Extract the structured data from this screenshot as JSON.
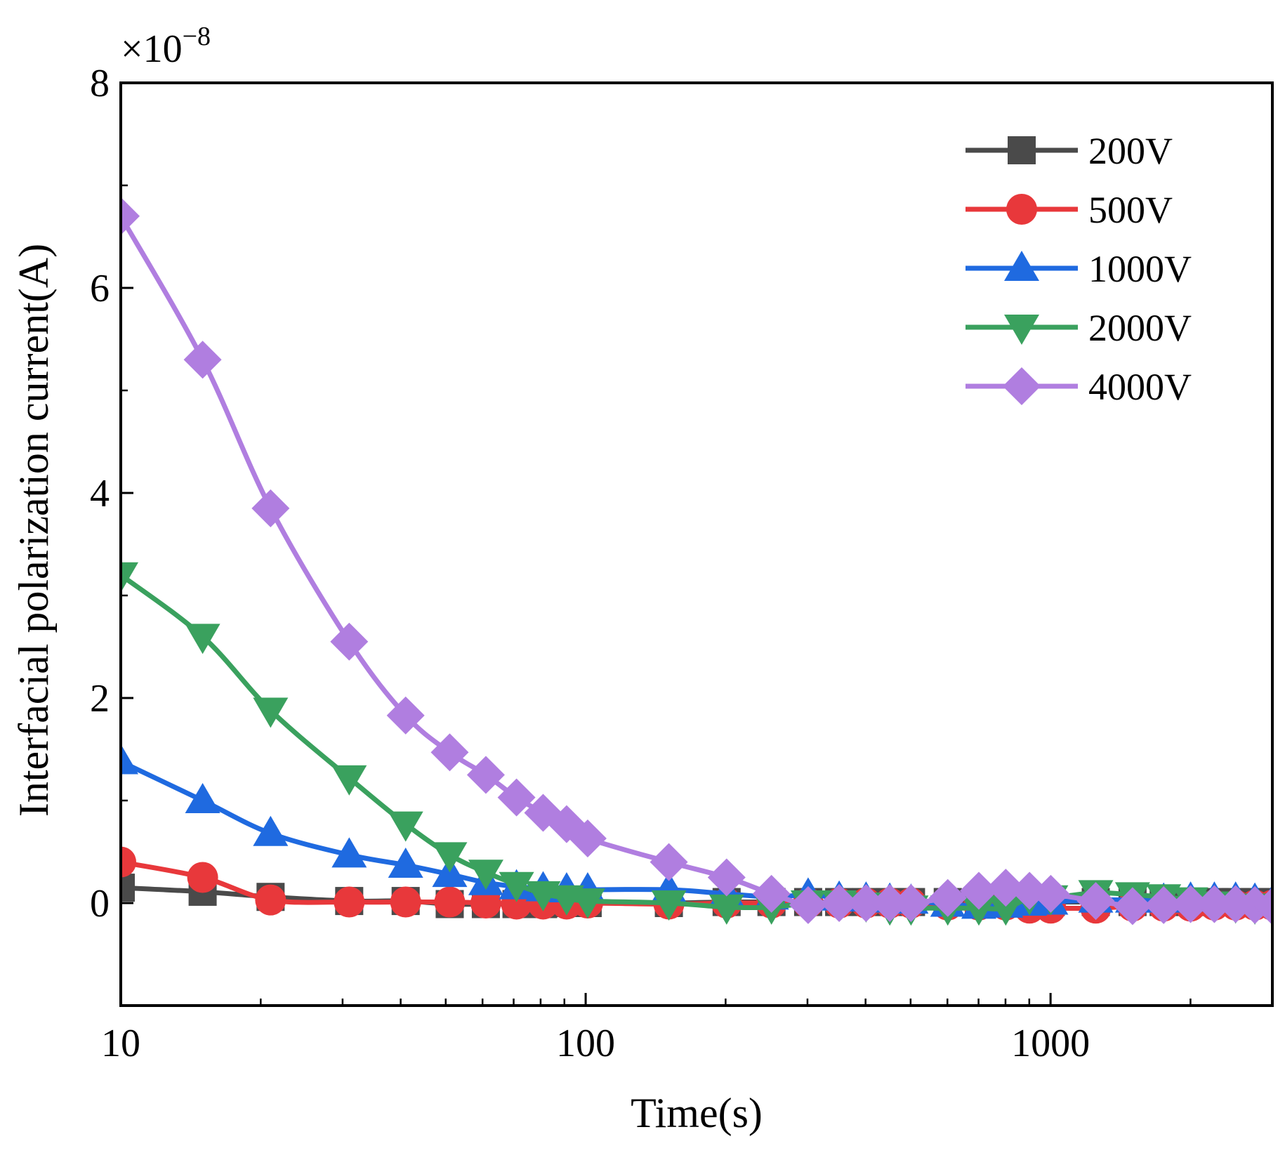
{
  "chart_data": {
    "type": "line",
    "title": "",
    "xlabel": "Time(s)",
    "ylabel": "Interfacial polarization current(A)",
    "xscale": "log",
    "xlim": [
      10,
      3000
    ],
    "ylim": [
      -0.01,
      0.08
    ],
    "y_multiplier": {
      "base": "×10",
      "exponent": "−8"
    },
    "x_ticks": [
      {
        "value": 10,
        "label": "10"
      },
      {
        "value": 100,
        "label": "100"
      },
      {
        "value": 1000,
        "label": "1000"
      }
    ],
    "y_ticks": [
      {
        "value": 0,
        "label": "0"
      },
      {
        "value": 0.02,
        "label": "2"
      },
      {
        "value": 0.04,
        "label": "4"
      },
      {
        "value": 0.06,
        "label": "6"
      },
      {
        "value": 0.08,
        "label": "8"
      }
    ],
    "y_minor_ticks": [
      0.01,
      0.03,
      0.05,
      0.07
    ],
    "legend_position": "top-right",
    "grid": false,
    "series": [
      {
        "name": "200V",
        "color": "#4a4a4a",
        "marker": "square",
        "points": [
          [
            10,
            0.0015
          ],
          [
            15,
            0.0011
          ],
          [
            21,
            0.0006
          ],
          [
            31,
            0.0002
          ],
          [
            41,
            0.0002
          ],
          [
            51,
            -0.0001
          ],
          [
            61,
            -0.0001
          ],
          [
            71,
            -0.0001
          ],
          [
            81,
            -0.0001
          ],
          [
            91,
            0.0
          ],
          [
            101,
            0.0
          ],
          [
            151,
            0.0
          ],
          [
            201,
            0.0001
          ],
          [
            251,
            0.0001
          ],
          [
            301,
            0.0001
          ],
          [
            351,
            0.0001
          ],
          [
            401,
            0.0001
          ],
          [
            451,
            0.0001
          ],
          [
            501,
            0.0001
          ],
          [
            601,
            0.0001
          ],
          [
            701,
            0.0001
          ],
          [
            801,
            0.0001
          ],
          [
            901,
            0.0001
          ],
          [
            1001,
            0.0001
          ],
          [
            1251,
            0.0001
          ],
          [
            1501,
            0.0001
          ],
          [
            1751,
            0.0001
          ],
          [
            2001,
            0.0001
          ],
          [
            2251,
            0.0001
          ],
          [
            2501,
            0.0001
          ],
          [
            2751,
            0.0001
          ],
          [
            3001,
            0.0001
          ]
        ]
      },
      {
        "name": "500V",
        "color": "#e8383b",
        "marker": "circle",
        "points": [
          [
            10,
            0.004
          ],
          [
            15,
            0.0025
          ],
          [
            21,
            0.0003
          ],
          [
            31,
            0.0001
          ],
          [
            41,
            0.0001
          ],
          [
            51,
            0.0001
          ],
          [
            61,
            0.0
          ],
          [
            71,
            -0.0001
          ],
          [
            81,
            -0.0001
          ],
          [
            91,
            -0.0001
          ],
          [
            101,
            0.0
          ],
          [
            151,
            -0.0001
          ],
          [
            201,
            0.0
          ],
          [
            251,
            0.0
          ],
          [
            301,
            0.0
          ],
          [
            351,
            0.0
          ],
          [
            401,
            0.0
          ],
          [
            451,
            0.0
          ],
          [
            501,
            0.0
          ],
          [
            601,
            -0.0002
          ],
          [
            701,
            -0.0002
          ],
          [
            801,
            -0.0002
          ],
          [
            901,
            -0.0005
          ],
          [
            1001,
            -0.0005
          ],
          [
            1251,
            -0.0005
          ],
          [
            1501,
            -0.0003
          ],
          [
            1751,
            -0.0003
          ],
          [
            2001,
            -0.0003
          ],
          [
            2251,
            -0.0002
          ],
          [
            2501,
            -0.0002
          ],
          [
            2751,
            -0.0002
          ],
          [
            3001,
            -0.0002
          ]
        ]
      },
      {
        "name": "1000V",
        "color": "#1f6ae0",
        "marker": "triangle-up",
        "points": [
          [
            10,
            0.0138
          ],
          [
            15,
            0.01
          ],
          [
            21,
            0.0068
          ],
          [
            31,
            0.0047
          ],
          [
            41,
            0.0037
          ],
          [
            51,
            0.0028
          ],
          [
            61,
            0.002
          ],
          [
            71,
            0.0016
          ],
          [
            81,
            0.0014
          ],
          [
            91,
            0.0013
          ],
          [
            101,
            0.0013
          ],
          [
            151,
            0.0013
          ],
          [
            201,
            0.0009
          ],
          [
            251,
            0.0006
          ],
          [
            301,
            0.0008
          ],
          [
            351,
            0.0005
          ],
          [
            401,
            0.0004
          ],
          [
            451,
            0.0003
          ],
          [
            501,
            0.0002
          ],
          [
            601,
            -0.0001
          ],
          [
            701,
            -0.0003
          ],
          [
            801,
            -0.0002
          ],
          [
            901,
            0.0
          ],
          [
            1001,
            0.0001
          ],
          [
            1251,
            0.0003
          ],
          [
            1501,
            0.0003
          ],
          [
            1751,
            0.0003
          ],
          [
            2001,
            0.0004
          ],
          [
            2251,
            0.0004
          ],
          [
            2501,
            0.0004
          ],
          [
            2751,
            0.0003
          ],
          [
            3001,
            0.0001
          ]
        ]
      },
      {
        "name": "2000V",
        "color": "#3aa15e",
        "marker": "triangle-down",
        "points": [
          [
            10,
            0.032
          ],
          [
            15,
            0.026
          ],
          [
            21,
            0.0188
          ],
          [
            31,
            0.0122
          ],
          [
            41,
            0.0077
          ],
          [
            51,
            0.0047
          ],
          [
            61,
            0.003
          ],
          [
            71,
            0.0018
          ],
          [
            81,
            0.0009
          ],
          [
            91,
            0.0005
          ],
          [
            101,
            0.0002
          ],
          [
            151,
            0.0
          ],
          [
            201,
            -0.0004
          ],
          [
            251,
            -0.0004
          ],
          [
            301,
            0.0
          ],
          [
            351,
            0.0
          ],
          [
            401,
            -0.0002
          ],
          [
            451,
            -0.0005
          ],
          [
            501,
            -0.0005
          ],
          [
            601,
            -0.0005
          ],
          [
            701,
            -0.0005
          ],
          [
            801,
            -0.0005
          ],
          [
            901,
            0.0005
          ],
          [
            1001,
            0.0005
          ],
          [
            1251,
            0.001
          ],
          [
            1501,
            0.0008
          ],
          [
            1751,
            0.0006
          ],
          [
            2001,
            0.0003
          ],
          [
            2251,
            -0.0001
          ],
          [
            2501,
            -0.0003
          ],
          [
            2751,
            -0.0004
          ],
          [
            3001,
            -0.0003
          ]
        ]
      },
      {
        "name": "4000V",
        "color": "#b07ee0",
        "marker": "diamond",
        "points": [
          [
            10,
            0.067
          ],
          [
            15,
            0.053
          ],
          [
            21,
            0.0385
          ],
          [
            31,
            0.0255
          ],
          [
            41,
            0.0183
          ],
          [
            51,
            0.0147
          ],
          [
            61,
            0.0125
          ],
          [
            71,
            0.0103
          ],
          [
            81,
            0.0088
          ],
          [
            91,
            0.0077
          ],
          [
            101,
            0.0063
          ],
          [
            151,
            0.004
          ],
          [
            201,
            0.0025
          ],
          [
            251,
            0.0009
          ],
          [
            301,
            -0.0002
          ],
          [
            351,
            0.0
          ],
          [
            401,
            0.0
          ],
          [
            451,
            0.0
          ],
          [
            501,
            0.0
          ],
          [
            601,
            0.0005
          ],
          [
            701,
            0.0012
          ],
          [
            801,
            0.0015
          ],
          [
            901,
            0.0012
          ],
          [
            1001,
            0.0009
          ],
          [
            1251,
            0.0002
          ],
          [
            1501,
            -0.0003
          ],
          [
            1751,
            -0.0002
          ],
          [
            2001,
            -0.0001
          ],
          [
            2251,
            -0.0001
          ],
          [
            2501,
            -0.0001
          ],
          [
            2751,
            -0.0002
          ],
          [
            3001,
            -0.0003
          ]
        ]
      }
    ]
  }
}
